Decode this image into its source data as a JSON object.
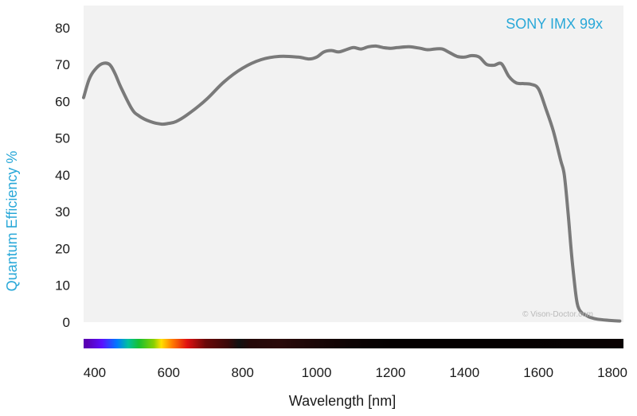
{
  "colors": {
    "plot_background": "#f2f2f2",
    "curve": "#7a7a7a",
    "accent": "#29a8d8",
    "text": "#1a1a1a",
    "watermark": "#b9b9b9"
  },
  "watermark": "© Vison-Doctor.com",
  "chart_data": {
    "type": "line",
    "title": "",
    "xlabel": "Wavelength [nm]",
    "ylabel": "Quantum Efficiency %",
    "xlim": [
      370,
      1830
    ],
    "ylim": [
      0,
      86
    ],
    "grid": false,
    "xticks": [
      400,
      600,
      800,
      1000,
      1200,
      1400,
      1600,
      1800
    ],
    "yticks": [
      0,
      10,
      20,
      30,
      40,
      50,
      60,
      70,
      80
    ],
    "series": [
      {
        "name": "SONY IMX 99x",
        "x": [
          370,
          385,
          400,
          420,
          440,
          455,
          470,
          500,
          520,
          550,
          580,
          600,
          620,
          650,
          700,
          750,
          800,
          850,
          900,
          950,
          980,
          1000,
          1020,
          1040,
          1060,
          1080,
          1100,
          1120,
          1140,
          1160,
          1180,
          1200,
          1220,
          1250,
          1280,
          1300,
          1320,
          1340,
          1360,
          1380,
          1400,
          1420,
          1440,
          1460,
          1480,
          1500,
          1520,
          1540,
          1560,
          1580,
          1600,
          1620,
          1640,
          1660,
          1670,
          1680,
          1690,
          1700,
          1705,
          1710,
          1715,
          1720,
          1730,
          1740,
          1760,
          1790,
          1820
        ],
        "y": [
          61,
          66,
          68.5,
          70.2,
          70,
          67.5,
          64,
          58,
          56,
          54.5,
          53.8,
          54,
          54.5,
          56.3,
          60.3,
          65.3,
          69,
          71.3,
          72.2,
          72,
          71.5,
          72,
          73.4,
          73.8,
          73.4,
          74,
          74.6,
          74.2,
          74.8,
          75,
          74.6,
          74.4,
          74.6,
          74.8,
          74.4,
          74,
          74.2,
          74.2,
          73.2,
          72.2,
          72,
          72.4,
          72,
          70,
          69.8,
          70.2,
          66.8,
          65,
          64.8,
          64.6,
          63.4,
          58,
          52,
          44,
          40,
          30,
          18,
          8.5,
          5,
          3.5,
          2.8,
          2.3,
          1.8,
          1.3,
          0.8,
          0.5,
          0.3
        ]
      }
    ],
    "spectrum_bar": {
      "stops": [
        {
          "wl": 380,
          "color": "#5a00b4"
        },
        {
          "wl": 420,
          "color": "#5a10ff"
        },
        {
          "wl": 460,
          "color": "#0078ff"
        },
        {
          "wl": 490,
          "color": "#00c0a0"
        },
        {
          "wl": 520,
          "color": "#18c030"
        },
        {
          "wl": 560,
          "color": "#8ad000"
        },
        {
          "wl": 580,
          "color": "#ffe000"
        },
        {
          "wl": 610,
          "color": "#ff7a00"
        },
        {
          "wl": 650,
          "color": "#e01010"
        },
        {
          "wl": 700,
          "color": "#6a0808"
        },
        {
          "wl": 760,
          "color": "#3a0808"
        },
        {
          "wl": 790,
          "color": "#111111"
        },
        {
          "wl": 820,
          "color": "#240808"
        },
        {
          "wl": 900,
          "color": "#2a0a0a"
        },
        {
          "wl": 1000,
          "color": "#1a0606"
        },
        {
          "wl": 1100,
          "color": "#0c0303"
        },
        {
          "wl": 1200,
          "color": "#050101"
        },
        {
          "wl": 1500,
          "color": "#050101"
        },
        {
          "wl": 1830,
          "color": "#0a0202"
        }
      ]
    }
  }
}
